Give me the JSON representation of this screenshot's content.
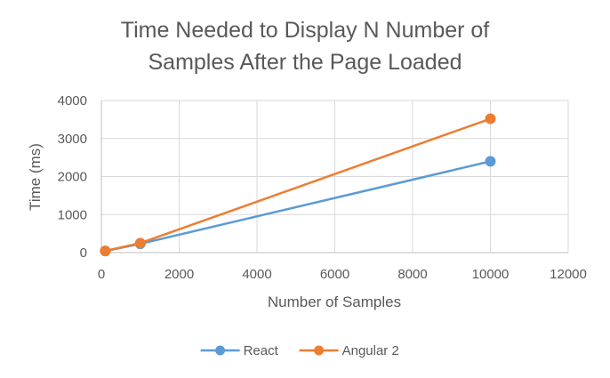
{
  "chart_data": {
    "type": "scatter",
    "title_lines": [
      "Time Needed to Display N Number of",
      "Samples After the Page Loaded"
    ],
    "xlabel": "Number of Samples",
    "ylabel": "Time (ms)",
    "xlim": [
      0,
      12000
    ],
    "ylim": [
      0,
      4000
    ],
    "xticks": [
      0,
      2000,
      4000,
      6000,
      8000,
      10000,
      12000
    ],
    "yticks": [
      0,
      1000,
      2000,
      3000,
      4000
    ],
    "grid": true,
    "legend_position": "bottom",
    "series": [
      {
        "name": "React",
        "color": "#5B9BD5",
        "points": [
          [
            100,
            40
          ],
          [
            1000,
            230
          ],
          [
            10000,
            2400
          ]
        ]
      },
      {
        "name": "Angular 2",
        "color": "#ED7D31",
        "points": [
          [
            100,
            45
          ],
          [
            1000,
            250
          ],
          [
            10000,
            3520
          ]
        ]
      }
    ]
  }
}
